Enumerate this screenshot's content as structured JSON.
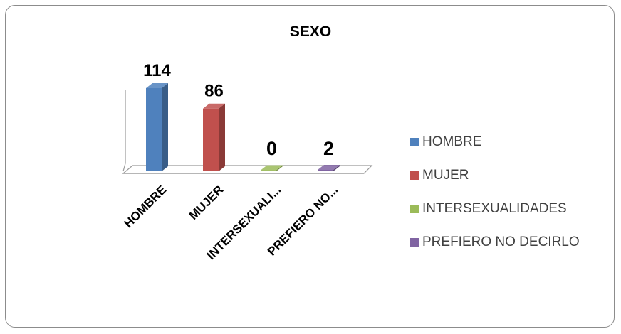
{
  "chart_data": {
    "type": "bar",
    "title": "SEXO",
    "categories": [
      "HOMBRE",
      "MUJER",
      "INTERSEXUALI...",
      "PREFIERO NO..."
    ],
    "values": [
      114,
      86,
      0,
      2
    ],
    "data_labels": [
      "114",
      "86",
      "0",
      "2"
    ],
    "colors": [
      "#4f81bd",
      "#c0504d",
      "#9bbb59",
      "#8064a2"
    ],
    "ylim": [
      0,
      114
    ],
    "grid": false,
    "legend": {
      "placement": "right",
      "entries": [
        "HOMBRE",
        "MUJER",
        "INTERSEXUALIDADES",
        "PREFIERO NO DECIRLO"
      ]
    }
  }
}
